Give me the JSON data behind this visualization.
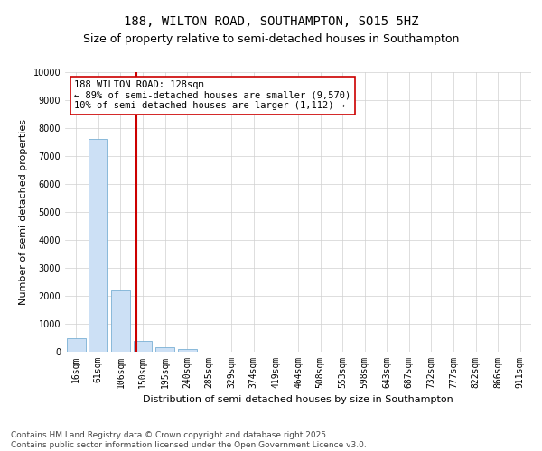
{
  "title_line1": "188, WILTON ROAD, SOUTHAMPTON, SO15 5HZ",
  "title_line2": "Size of property relative to semi-detached houses in Southampton",
  "xlabel": "Distribution of semi-detached houses by size in Southampton",
  "ylabel": "Number of semi-detached properties",
  "categories": [
    "16sqm",
    "61sqm",
    "106sqm",
    "150sqm",
    "195sqm",
    "240sqm",
    "285sqm",
    "329sqm",
    "374sqm",
    "419sqm",
    "464sqm",
    "508sqm",
    "553sqm",
    "598sqm",
    "643sqm",
    "687sqm",
    "732sqm",
    "777sqm",
    "822sqm",
    "866sqm",
    "911sqm"
  ],
  "values": [
    500,
    7600,
    2200,
    400,
    150,
    100,
    0,
    0,
    0,
    0,
    0,
    0,
    0,
    0,
    0,
    0,
    0,
    0,
    0,
    0,
    0
  ],
  "bar_color": "#cce0f5",
  "bar_edge_color": "#7ab0d4",
  "vline_x": 2.72,
  "vline_color": "#cc0000",
  "annotation_text": "188 WILTON ROAD: 128sqm\n← 89% of semi-detached houses are smaller (9,570)\n10% of semi-detached houses are larger (1,112) →",
  "annotation_box_color": "#ffffff",
  "annotation_box_edge": "#cc0000",
  "ylim": [
    0,
    10000
  ],
  "yticks": [
    0,
    1000,
    2000,
    3000,
    4000,
    5000,
    6000,
    7000,
    8000,
    9000,
    10000
  ],
  "grid_color": "#d0d0d0",
  "background_color": "#ffffff",
  "footnote": "Contains HM Land Registry data © Crown copyright and database right 2025.\nContains public sector information licensed under the Open Government Licence v3.0.",
  "title_fontsize": 10,
  "subtitle_fontsize": 9,
  "axis_label_fontsize": 8,
  "tick_fontsize": 7,
  "annotation_fontsize": 7.5,
  "footnote_fontsize": 6.5
}
